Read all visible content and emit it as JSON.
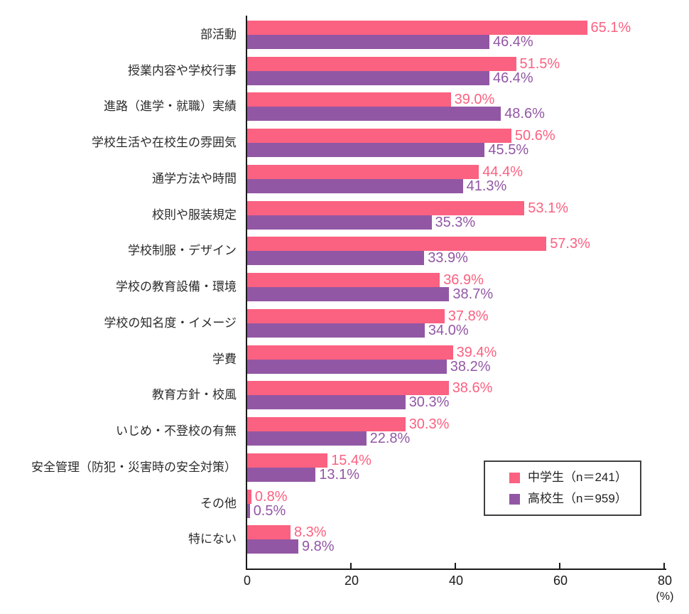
{
  "chart_data": {
    "type": "bar",
    "orientation": "horizontal",
    "categories": [
      "部活動",
      "授業内容や学校行事",
      "進路（進学・就職）実績",
      "学校生活や在校生の雰囲気",
      "通学方法や時間",
      "校則や服装規定",
      "学校制服・デザイン",
      "学校の教育設備・環境",
      "学校の知名度・イメージ",
      "学費",
      "教育方針・校風",
      "いじめ・不登校の有無",
      "安全管理（防犯・災害時の安全対策）",
      "その他",
      "特にない"
    ],
    "series": [
      {
        "name": "中学生（n＝241）",
        "color": "#FB6180",
        "values": [
          65.1,
          51.5,
          39.0,
          50.6,
          44.4,
          53.1,
          57.3,
          36.9,
          37.8,
          39.4,
          38.6,
          30.3,
          15.4,
          0.8,
          8.3
        ]
      },
      {
        "name": "高校生（n＝959）",
        "color": "#9257A4",
        "values": [
          46.4,
          46.4,
          48.6,
          45.5,
          41.3,
          35.3,
          33.9,
          38.7,
          34.0,
          38.2,
          30.3,
          22.8,
          13.1,
          0.5,
          9.8
        ]
      }
    ],
    "xlim": [
      0,
      80
    ],
    "x_ticks": [
      0,
      20,
      40,
      60,
      80
    ],
    "x_axis_unit": "(%)",
    "value_suffix": "%",
    "grid": false,
    "legend_position": "inset-lower-right",
    "axis_color": "#1a1a1a"
  }
}
